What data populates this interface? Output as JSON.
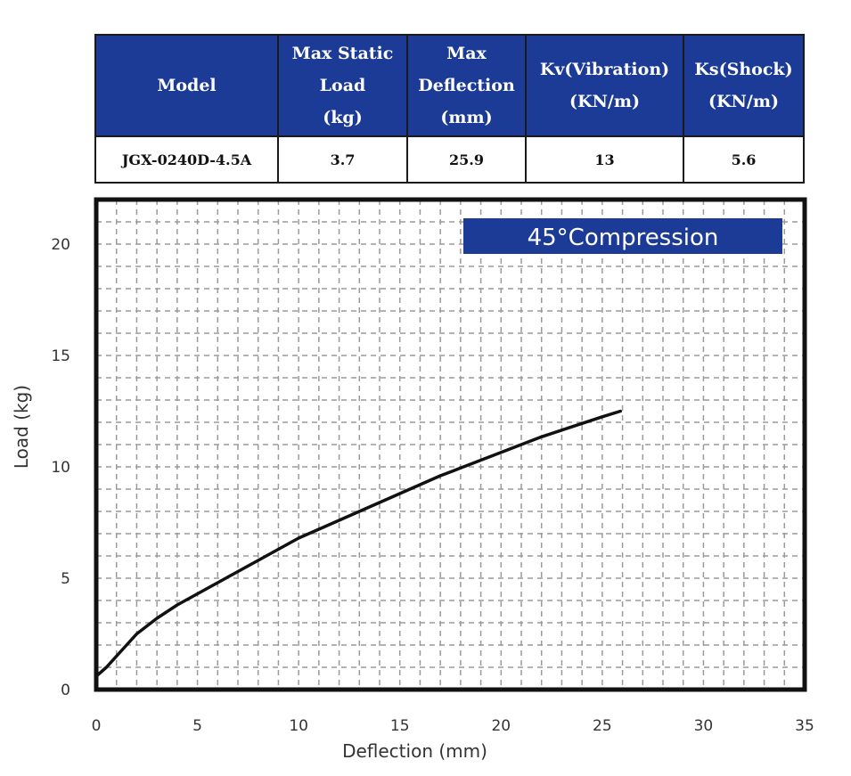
{
  "table": {
    "headers": [
      "Max Static\nLoad\n(kg)",
      "Max\nDeflection\n(mm)",
      "Kv(Vibration)\n(KN/m)",
      "Ks(Shock)\n(KN/m)"
    ],
    "model_header": "Model",
    "row": {
      "model": "JGX-0240D-4.5A",
      "max_static_load": "3.7",
      "max_deflection": "25.9",
      "kv": "13",
      "ks": "5.6"
    }
  },
  "colors": {
    "header_bg": "#1c3b96",
    "legend_bg": "#1c3b96",
    "curve": "#111111",
    "grid": "#9a9a9a"
  },
  "chart_data": {
    "type": "line",
    "title": "",
    "legend_label": "45°Compression",
    "legend_placement": "top-right",
    "xlabel": "Deflection (mm)",
    "ylabel": "Load (kg)",
    "xlim": [
      0,
      35
    ],
    "ylim": [
      0,
      22
    ],
    "xticks": [
      0,
      5,
      10,
      15,
      20,
      25,
      30,
      35
    ],
    "yticks": [
      0,
      5,
      10,
      15,
      20
    ],
    "grid": true,
    "series": [
      {
        "name": "",
        "x": [
          0,
          0.5,
          1,
          2,
          3,
          4,
          5,
          6,
          7,
          8,
          9,
          10,
          11,
          12,
          13,
          14,
          15,
          16,
          17,
          18,
          19,
          20,
          21,
          22,
          23,
          24,
          25,
          25.9
        ],
        "y": [
          0.6,
          1.0,
          1.5,
          2.5,
          3.2,
          3.8,
          4.3,
          4.8,
          5.3,
          5.8,
          6.3,
          6.8,
          7.2,
          7.6,
          8.0,
          8.4,
          8.8,
          9.2,
          9.6,
          9.95,
          10.3,
          10.65,
          11.0,
          11.35,
          11.65,
          11.95,
          12.25,
          12.5
        ]
      }
    ]
  }
}
